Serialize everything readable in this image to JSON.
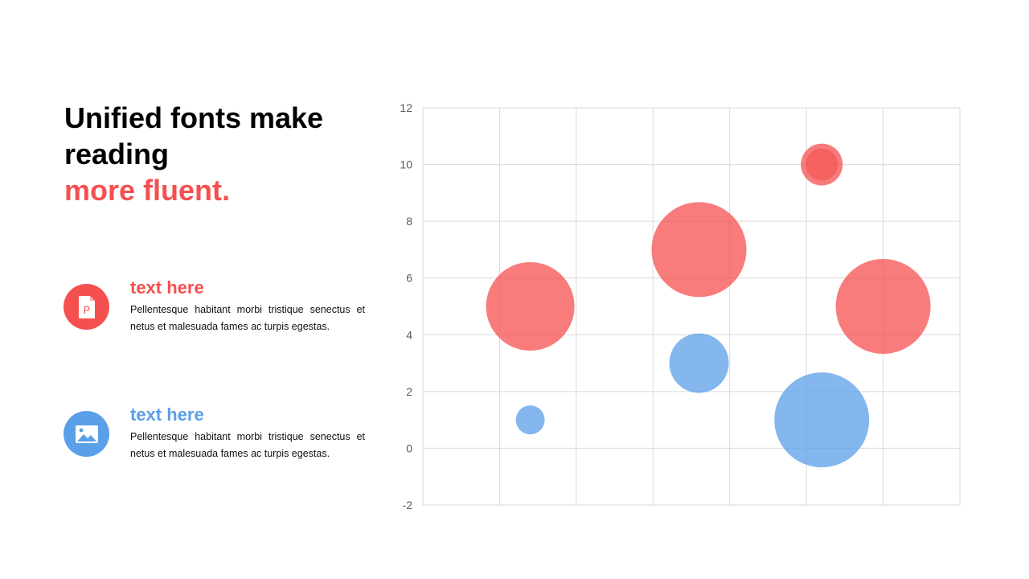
{
  "headline": {
    "line1": "Unified fonts make",
    "line2": "reading",
    "accent": "more fluent."
  },
  "items": [
    {
      "title": "text here",
      "description": "Pellentesque habitant morbi tristique senectus et netus et malesuada fames ac turpis egestas.",
      "icon": "document-icon",
      "color": "#f55050"
    },
    {
      "title": "text here",
      "description": "Pellentesque habitant morbi tristique senectus et netus et malesuada fames ac turpis egestas.",
      "icon": "image-icon",
      "color": "#5a9fe8"
    }
  ],
  "colors": {
    "accent": "#f55050",
    "secondary": "#5a9fe8",
    "grid": "#d9d9d9"
  },
  "chart_data": {
    "type": "scatter",
    "subtype": "bubble",
    "ylim": [
      -2,
      12
    ],
    "yticks": [
      12,
      10,
      8,
      6,
      4,
      2,
      0,
      -2
    ],
    "grid": true,
    "xlabel": "",
    "ylabel": "",
    "title": "",
    "series": [
      {
        "color": "#f55050",
        "points": [
          {
            "x": 1.4,
            "y": 5,
            "size": 55
          },
          {
            "x": 3.6,
            "y": 7,
            "size": 59
          },
          {
            "x": 5.2,
            "y": 10,
            "size": 26
          },
          {
            "x": 6.0,
            "y": 5,
            "size": 59
          }
        ]
      },
      {
        "color": "#5a9fe8",
        "points": [
          {
            "x": 1.4,
            "y": 1,
            "size": 18
          },
          {
            "x": 3.6,
            "y": 3,
            "size": 37
          },
          {
            "x": 5.2,
            "y": 1,
            "size": 59
          }
        ]
      }
    ]
  }
}
